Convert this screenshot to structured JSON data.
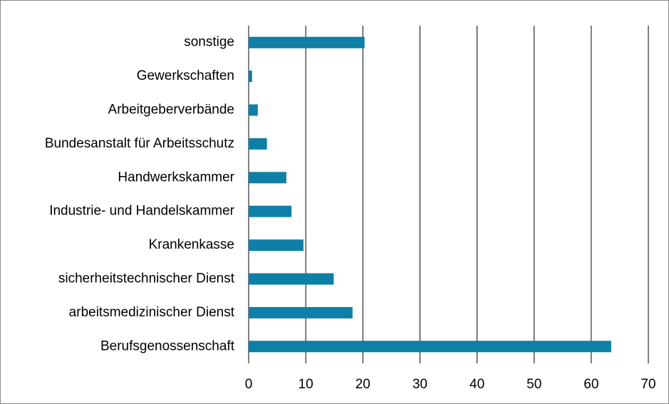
{
  "chart_data": {
    "type": "bar",
    "orientation": "horizontal",
    "categories": [
      "sonstige",
      "Gewerkschaften",
      "Arbeitgeberverbände",
      "Bundesanstalt für Arbeitsschutz",
      "Handwerkskammer",
      "Industrie- und Handelskammer",
      "Krankenkasse",
      "sicherheitstechnischer Dienst",
      "arbeitsmedizinischer Dienst",
      "Berufsgenossenschaft"
    ],
    "values": [
      20.3,
      0.6,
      1.6,
      3.2,
      6.6,
      7.5,
      9.6,
      14.9,
      18.2,
      63.5
    ],
    "color": "#0e7fa6",
    "xlim": [
      0,
      70
    ],
    "xticks": [
      0,
      10,
      20,
      30,
      40,
      50,
      60,
      70
    ],
    "grid": true
  }
}
